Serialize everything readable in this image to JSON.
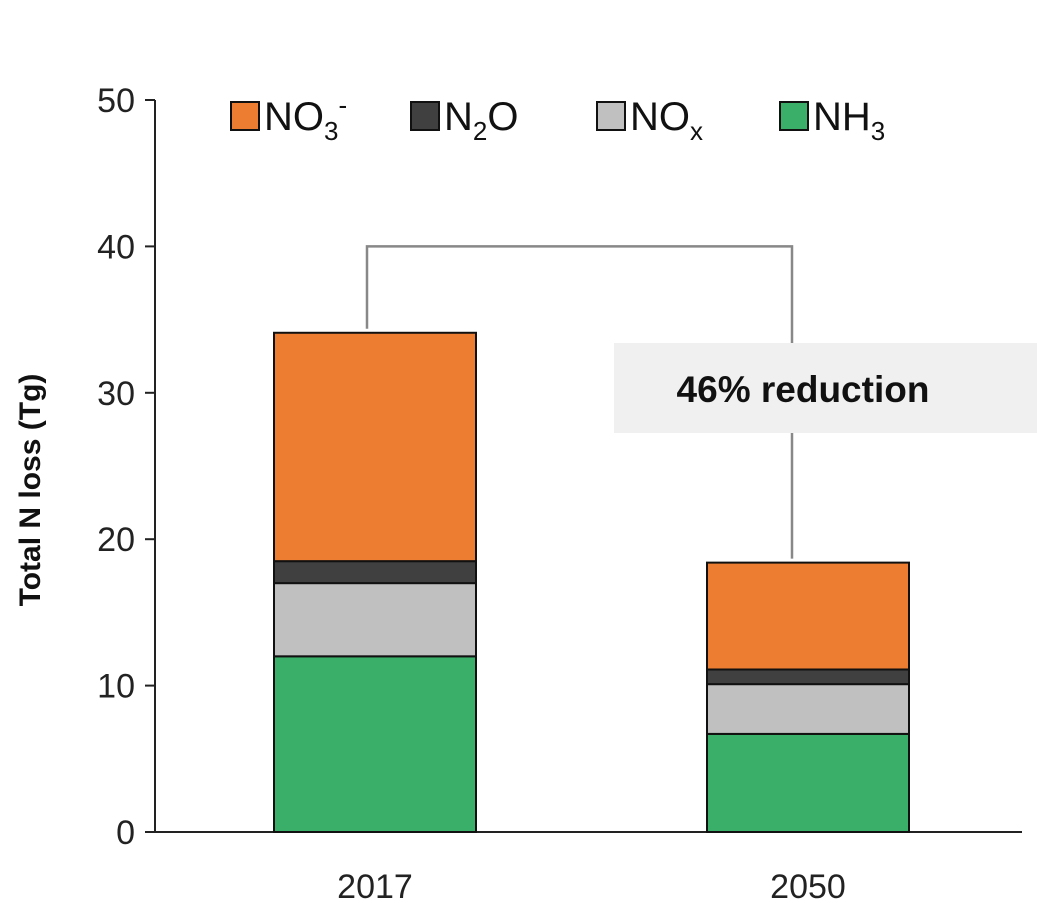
{
  "chart_data": {
    "type": "bar",
    "stacked": true,
    "categories": [
      "2017",
      "2050"
    ],
    "series": [
      {
        "name": "NH3",
        "label_main": "NH",
        "label_sub": "3",
        "label_sub_pos": "sub",
        "label_tail": "",
        "color": "#3aaf6a",
        "values": [
          12.0,
          6.7
        ]
      },
      {
        "name": "NOx",
        "label_main": "NO",
        "label_sub": "x",
        "label_sub_pos": "sub",
        "label_tail": "",
        "color": "#c0c0c0",
        "values": [
          5.0,
          3.4
        ]
      },
      {
        "name": "N2O",
        "label_main": "N",
        "label_sub": "2",
        "label_sub_pos": "sub",
        "label_tail": "O",
        "color": "#404040",
        "values": [
          1.5,
          1.0
        ]
      },
      {
        "name": "NO3-",
        "label_main": "NO",
        "label_sub": "3",
        "label_sub_pos": "sub",
        "label_tail": "-",
        "color": "#ed7d31",
        "values": [
          15.6,
          7.3
        ]
      }
    ],
    "legend_order": [
      "NO3-",
      "N2O",
      "NOx",
      "NH3"
    ],
    "ylabel": "Total N loss (Tg)",
    "xlabel": "",
    "ylim": [
      0,
      50
    ],
    "yticks": [
      0,
      10,
      20,
      30,
      40,
      50
    ],
    "grid": false,
    "legend_position": "top",
    "annotation": {
      "text": "46% reduction",
      "bracket_level": 40
    }
  }
}
